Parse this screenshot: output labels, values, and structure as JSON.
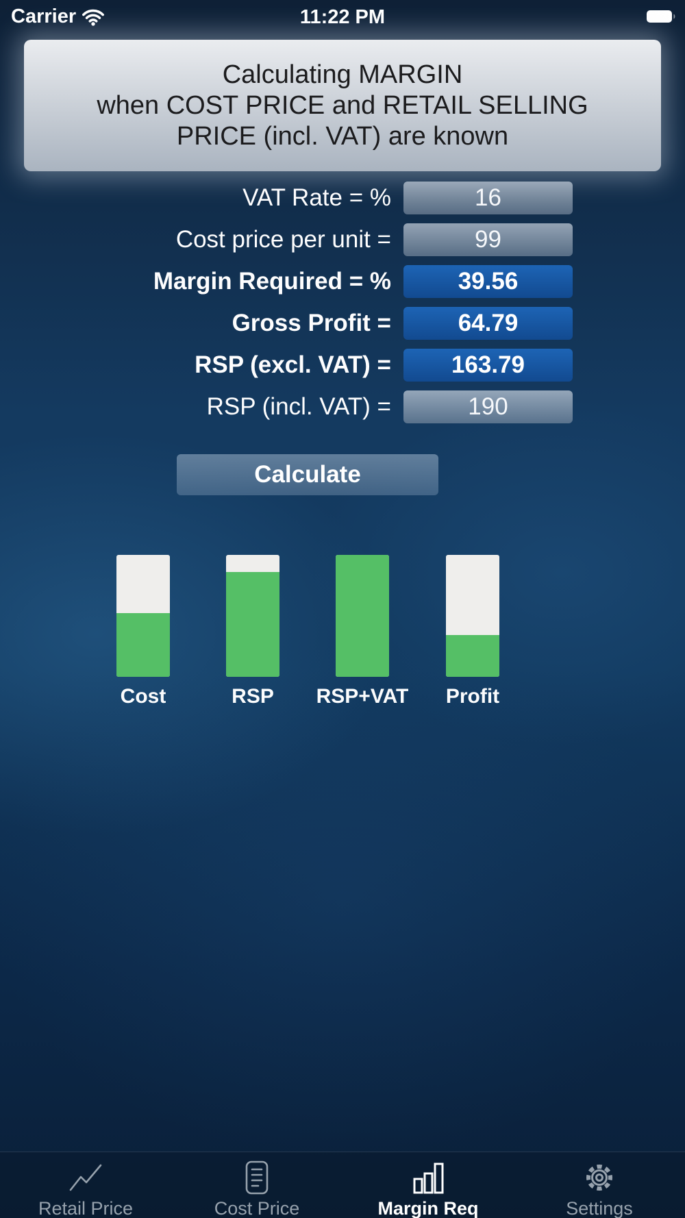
{
  "status_bar": {
    "carrier": "Carrier",
    "time": "11:22 PM"
  },
  "header": {
    "line1": "Calculating MARGIN",
    "line2": "when COST PRICE and RETAIL SELLING",
    "line3": "PRICE (incl. VAT) are known"
  },
  "form": {
    "rows": [
      {
        "label": "VAT Rate = %",
        "value": "16"
      },
      {
        "label": "Cost price per unit =",
        "value": "99"
      },
      {
        "label": "Margin Required = %",
        "value": "39.56"
      },
      {
        "label": "Gross Profit =",
        "value": "64.79"
      },
      {
        "label": "RSP (excl. VAT) =",
        "value": "163.79"
      },
      {
        "label": "RSP (incl. VAT) =",
        "value": "190"
      }
    ]
  },
  "actions": {
    "calculate_label": "Calculate"
  },
  "chart_data": {
    "type": "bar",
    "categories": [
      "Cost",
      "RSP",
      "RSP+VAT",
      "Profit"
    ],
    "values": [
      99,
      163.79,
      190,
      64.79
    ],
    "ymax": 190,
    "bar_color": "#55bf66",
    "track_color": "#efeeec",
    "legend": "none",
    "grid": false
  },
  "tab_bar": {
    "tabs": [
      {
        "label": "Retail Price",
        "icon": "line-chart-icon",
        "active": false
      },
      {
        "label": "Cost Price",
        "icon": "document-icon",
        "active": false
      },
      {
        "label": "Margin Req",
        "icon": "bar-chart-icon",
        "active": true
      },
      {
        "label": "Settings",
        "icon": "gear-icon",
        "active": false
      }
    ]
  },
  "colors": {
    "accent_green": "#55bf66",
    "track_white": "#efeeec",
    "result_blue": "#124a90"
  }
}
